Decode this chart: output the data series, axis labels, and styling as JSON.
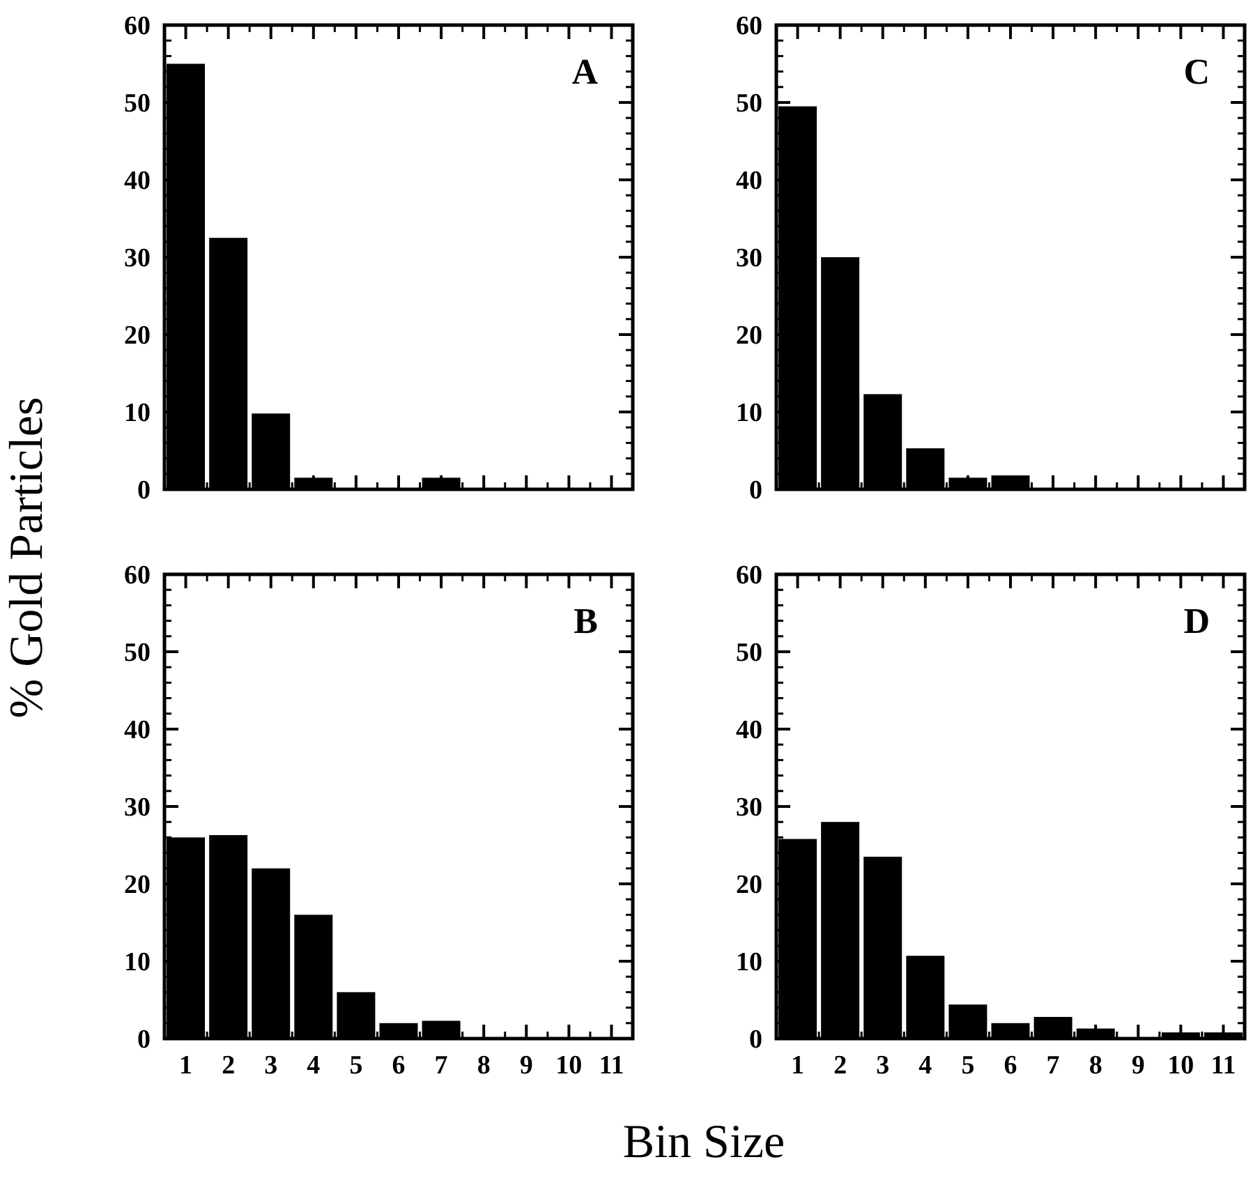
{
  "chart_data": [
    {
      "type": "bar",
      "categories": [
        "1",
        "2",
        "3",
        "4",
        "5",
        "6",
        "7",
        "8",
        "9",
        "10",
        "11"
      ],
      "values": [
        55,
        32.5,
        9.8,
        1.5,
        0,
        0,
        1.5,
        0,
        0,
        0,
        0
      ],
      "color": "#000000",
      "ylim": [
        0,
        60
      ],
      "yticks": [
        0,
        10,
        20,
        30,
        40,
        50,
        60
      ],
      "tick_labels": "y",
      "annotations": [
        "A"
      ],
      "ylabel": "% Gold Particles"
    },
    {
      "type": "bar",
      "categories": [
        "1",
        "2",
        "3",
        "4",
        "5",
        "6",
        "7",
        "8",
        "9",
        "10",
        "11"
      ],
      "values": [
        49.5,
        30,
        12.3,
        5.3,
        1.5,
        1.8,
        0,
        0,
        0,
        0,
        0
      ],
      "color": "#000000",
      "ylim": [
        0,
        60
      ],
      "yticks": [
        0,
        10,
        20,
        30,
        40,
        50,
        60
      ],
      "tick_labels": "y",
      "annotations": [
        "C"
      ]
    },
    {
      "type": "bar",
      "categories": [
        "1",
        "2",
        "3",
        "4",
        "5",
        "6",
        "7",
        "8",
        "9",
        "10",
        "11"
      ],
      "values": [
        26,
        26.3,
        22,
        16,
        6,
        2,
        2.3,
        0,
        0,
        0,
        0
      ],
      "color": "#000000",
      "ylim": [
        0,
        60
      ],
      "yticks": [
        0,
        10,
        20,
        30,
        40,
        50,
        60
      ],
      "annotations": [
        "B"
      ],
      "xlabel": "Bin Size"
    },
    {
      "type": "bar",
      "categories": [
        "1",
        "2",
        "3",
        "4",
        "5",
        "6",
        "7",
        "8",
        "9",
        "10",
        "11"
      ],
      "values": [
        25.8,
        28,
        23.5,
        10.7,
        4.4,
        2,
        2.8,
        1.3,
        0,
        0.8,
        0.8
      ],
      "color": "#000000",
      "ylim": [
        0,
        60
      ],
      "yticks": [
        0,
        10,
        20,
        30,
        40,
        50,
        60
      ],
      "annotations": [
        "D"
      ]
    }
  ]
}
